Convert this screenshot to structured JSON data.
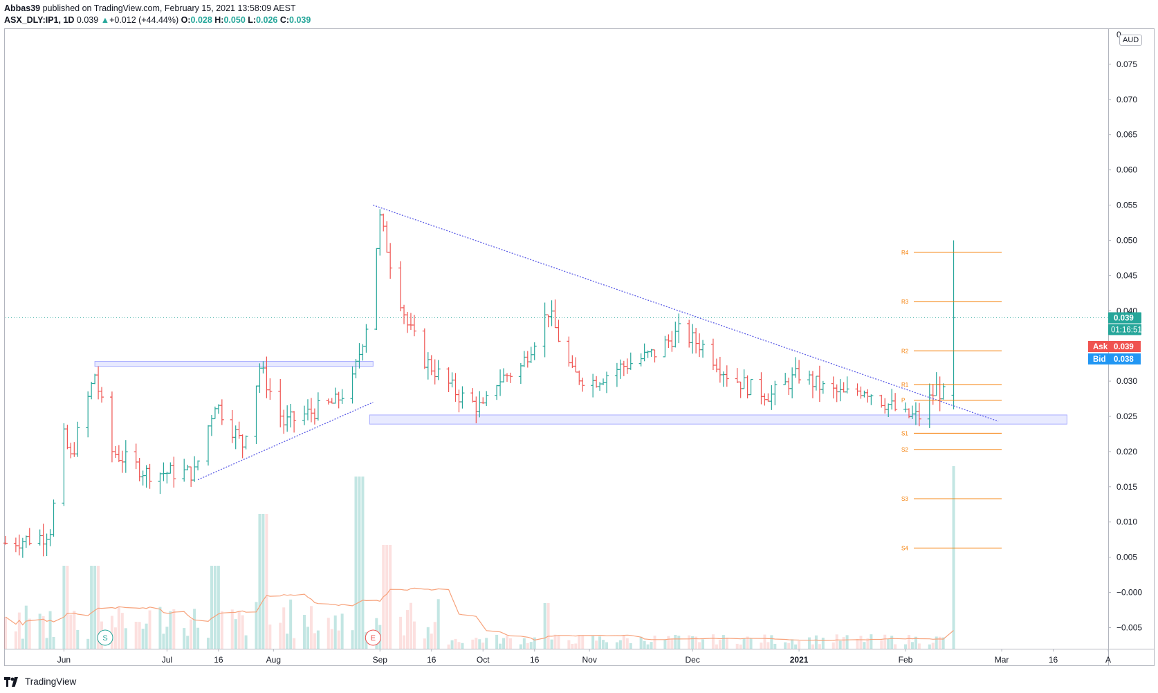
{
  "header": {
    "author": "Abbas39",
    "published_text": "published on TradingView.com, February 15, 2021 13:58:09 AEST",
    "symbol": "ASX_DLY:IP1, 1D",
    "last": "0.039",
    "change": "+0.012 (+44.44%)",
    "o_label": "O:",
    "o": "0.028",
    "h_label": "H:",
    "h": "0.050",
    "l_label": "L:",
    "l": "0.026",
    "c_label": "C:",
    "c": "0.039"
  },
  "currency": "AUD",
  "footer": {
    "brand": "TradingView"
  },
  "colors": {
    "up": "#26a69a",
    "down": "#ef5350",
    "trend": "#5b5ce6",
    "pivot": "#f57c00",
    "zone": "#ccd0ff",
    "ma": "#f7a27b",
    "bid": "#2196f3"
  },
  "chart_data": {
    "type": "ohlc",
    "title": "ASX_DLY:IP1, 1D",
    "y_unit": "AUD",
    "ylim": [
      -0.008,
      0.08
    ],
    "y_ticks": [
      "0.075",
      "0.070",
      "0.065",
      "0.060",
      "0.055",
      "0.050",
      "0.045",
      "0.040",
      "0.035",
      "0.030",
      "0.025",
      "0.020",
      "0.015",
      "0.010",
      "0.005",
      "−0.000",
      "−0.005"
    ],
    "y_tick_values": [
      0.075,
      0.07,
      0.065,
      0.06,
      0.055,
      0.05,
      0.045,
      0.04,
      0.035,
      0.03,
      0.025,
      0.02,
      0.015,
      0.01,
      0.005,
      0.0,
      -0.005
    ],
    "x_ticks": [
      "Jun",
      "Jul",
      "16",
      "Aug",
      "Sep",
      "16",
      "Oct",
      "16",
      "Nov",
      "Dec",
      "2021",
      "Feb",
      "Mar",
      "16",
      "A"
    ],
    "x_tick_dates": [
      "2020-06-01",
      "2020-07-01",
      "2020-07-16",
      "2020-08-01",
      "2020-09-01",
      "2020-09-16",
      "2020-10-01",
      "2020-10-16",
      "2020-11-01",
      "2020-12-01",
      "2021-01-01",
      "2021-02-01",
      "2021-03-01",
      "2021-03-16",
      "2021-04-01"
    ],
    "x_range": [
      "2020-05-15",
      "2021-04-01"
    ],
    "price_labels": {
      "last": "0.039",
      "countdown": "01:16:51",
      "ask_label": "Ask",
      "ask": "0.039",
      "bid_label": "Bid",
      "bid": "0.038"
    },
    "last_price": 0.039,
    "price_anchors": [
      [
        "2020-05-15",
        0.007
      ],
      [
        "2020-05-26",
        0.008
      ],
      [
        "2020-05-28",
        0.009
      ],
      [
        "2020-06-01",
        0.022
      ],
      [
        "2020-06-03",
        0.019
      ],
      [
        "2020-06-10",
        0.031
      ],
      [
        "2020-06-15",
        0.02
      ],
      [
        "2020-06-25",
        0.017
      ],
      [
        "2020-07-09",
        0.017
      ],
      [
        "2020-07-15",
        0.027
      ],
      [
        "2020-07-23",
        0.021
      ],
      [
        "2020-07-28",
        0.032
      ],
      [
        "2020-08-04",
        0.024
      ],
      [
        "2020-08-19",
        0.027
      ],
      [
        "2020-08-24",
        0.03
      ],
      [
        "2020-08-28",
        0.038
      ],
      [
        "2020-09-01",
        0.053
      ],
      [
        "2020-09-04",
        0.047
      ],
      [
        "2020-09-09",
        0.038
      ],
      [
        "2020-09-14",
        0.033
      ],
      [
        "2020-09-18",
        0.031
      ],
      [
        "2020-09-24",
        0.028
      ],
      [
        "2020-10-01",
        0.026
      ],
      [
        "2020-10-05",
        0.03
      ],
      [
        "2020-10-12",
        0.032
      ],
      [
        "2020-10-20",
        0.04
      ],
      [
        "2020-10-27",
        0.031
      ],
      [
        "2020-11-02",
        0.03
      ],
      [
        "2020-11-10",
        0.032
      ],
      [
        "2020-11-20",
        0.034
      ],
      [
        "2020-11-27",
        0.037
      ],
      [
        "2020-12-04",
        0.035
      ],
      [
        "2020-12-11",
        0.031
      ],
      [
        "2020-12-18",
        0.029
      ],
      [
        "2020-12-24",
        0.028
      ],
      [
        "2021-01-01",
        0.031
      ],
      [
        "2021-01-08",
        0.029
      ],
      [
        "2021-01-14",
        0.028
      ],
      [
        "2021-01-20",
        0.029
      ],
      [
        "2021-01-26",
        0.027
      ],
      [
        "2021-02-01",
        0.025
      ],
      [
        "2021-02-05",
        0.025
      ],
      [
        "2021-02-10",
        0.029
      ],
      [
        "2021-02-12",
        0.028
      ],
      [
        "2021-02-15",
        0.039
      ]
    ],
    "last_bar": {
      "date": "2021-02-15",
      "open": 0.028,
      "high": 0.05,
      "low": 0.026,
      "close": 0.039
    },
    "trendlines": [
      {
        "name": "support-trendline",
        "from": [
          "2020-07-10",
          0.016
        ],
        "to": [
          "2020-08-30",
          0.027
        ]
      },
      {
        "name": "resistance-trendline",
        "from": [
          "2020-08-30",
          0.055
        ],
        "to": [
          "2021-02-28",
          0.0243
        ]
      }
    ],
    "zones": [
      {
        "name": "resistance-zone",
        "from": "2020-06-10",
        "to": "2020-08-30",
        "low": 0.0321,
        "high": 0.0328
      },
      {
        "name": "support-zone",
        "from": "2020-08-29",
        "to": "2021-03-20",
        "low": 0.0239,
        "high": 0.0252
      }
    ],
    "pivots": {
      "from": "2021-02-01",
      "to": "2021-03-01",
      "levels": [
        {
          "label": "R4",
          "value": 0.0483
        },
        {
          "label": "R3",
          "value": 0.0413
        },
        {
          "label": "R2",
          "value": 0.0343
        },
        {
          "label": "R1",
          "value": 0.0295
        },
        {
          "label": "P",
          "value": 0.0273
        },
        {
          "label": "S1",
          "value": 0.0226
        },
        {
          "label": "S2",
          "value": 0.0203
        },
        {
          "label": "S3",
          "value": 0.0133
        },
        {
          "label": "S4",
          "value": 0.0063
        }
      ]
    },
    "events": [
      {
        "label": "S",
        "date": "2020-06-13"
      },
      {
        "label": "E",
        "date": "2020-08-30"
      }
    ],
    "volume_peaks": [
      [
        "2020-06-01",
        0.4
      ],
      [
        "2020-06-10",
        0.4
      ],
      [
        "2020-07-15",
        0.4
      ],
      [
        "2020-07-29",
        0.65
      ],
      [
        "2020-08-26",
        0.83
      ],
      [
        "2020-09-03",
        0.5
      ],
      [
        "2020-10-19",
        0.22
      ],
      [
        "2021-02-15",
        0.88
      ]
    ]
  }
}
